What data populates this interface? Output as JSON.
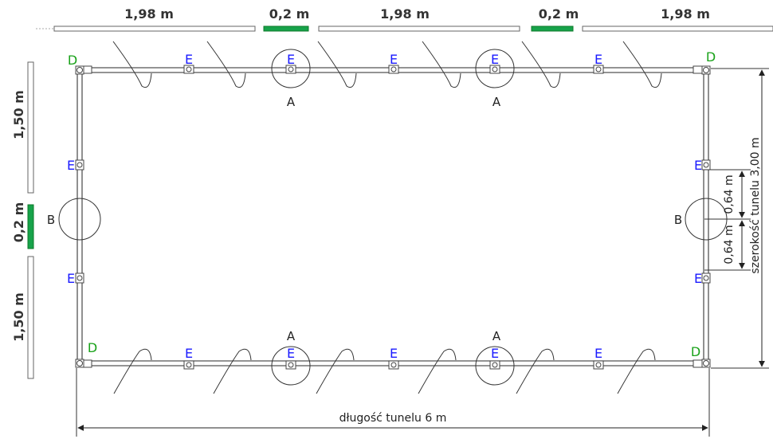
{
  "top_panels": {
    "p1": "1,98 m",
    "p2": "0,2 m",
    "p3": "1,98 m",
    "p4": "0,2 m",
    "p5": "1,98 m"
  },
  "side_panels": {
    "p1": "1,50 m",
    "p2": "0,2 m",
    "p3": "1,50 m"
  },
  "markers": {
    "E": "E",
    "D": "D",
    "A": "A",
    "B": "B"
  },
  "dimensions": {
    "length": "długość tunelu 6 m",
    "width": "szerokość tunelu 3,00 m",
    "offset": "0,64 m"
  },
  "colors": {
    "E_label": "#1a1aff",
    "D_label": "#1aa21a",
    "green_panel": "#17a34a"
  }
}
